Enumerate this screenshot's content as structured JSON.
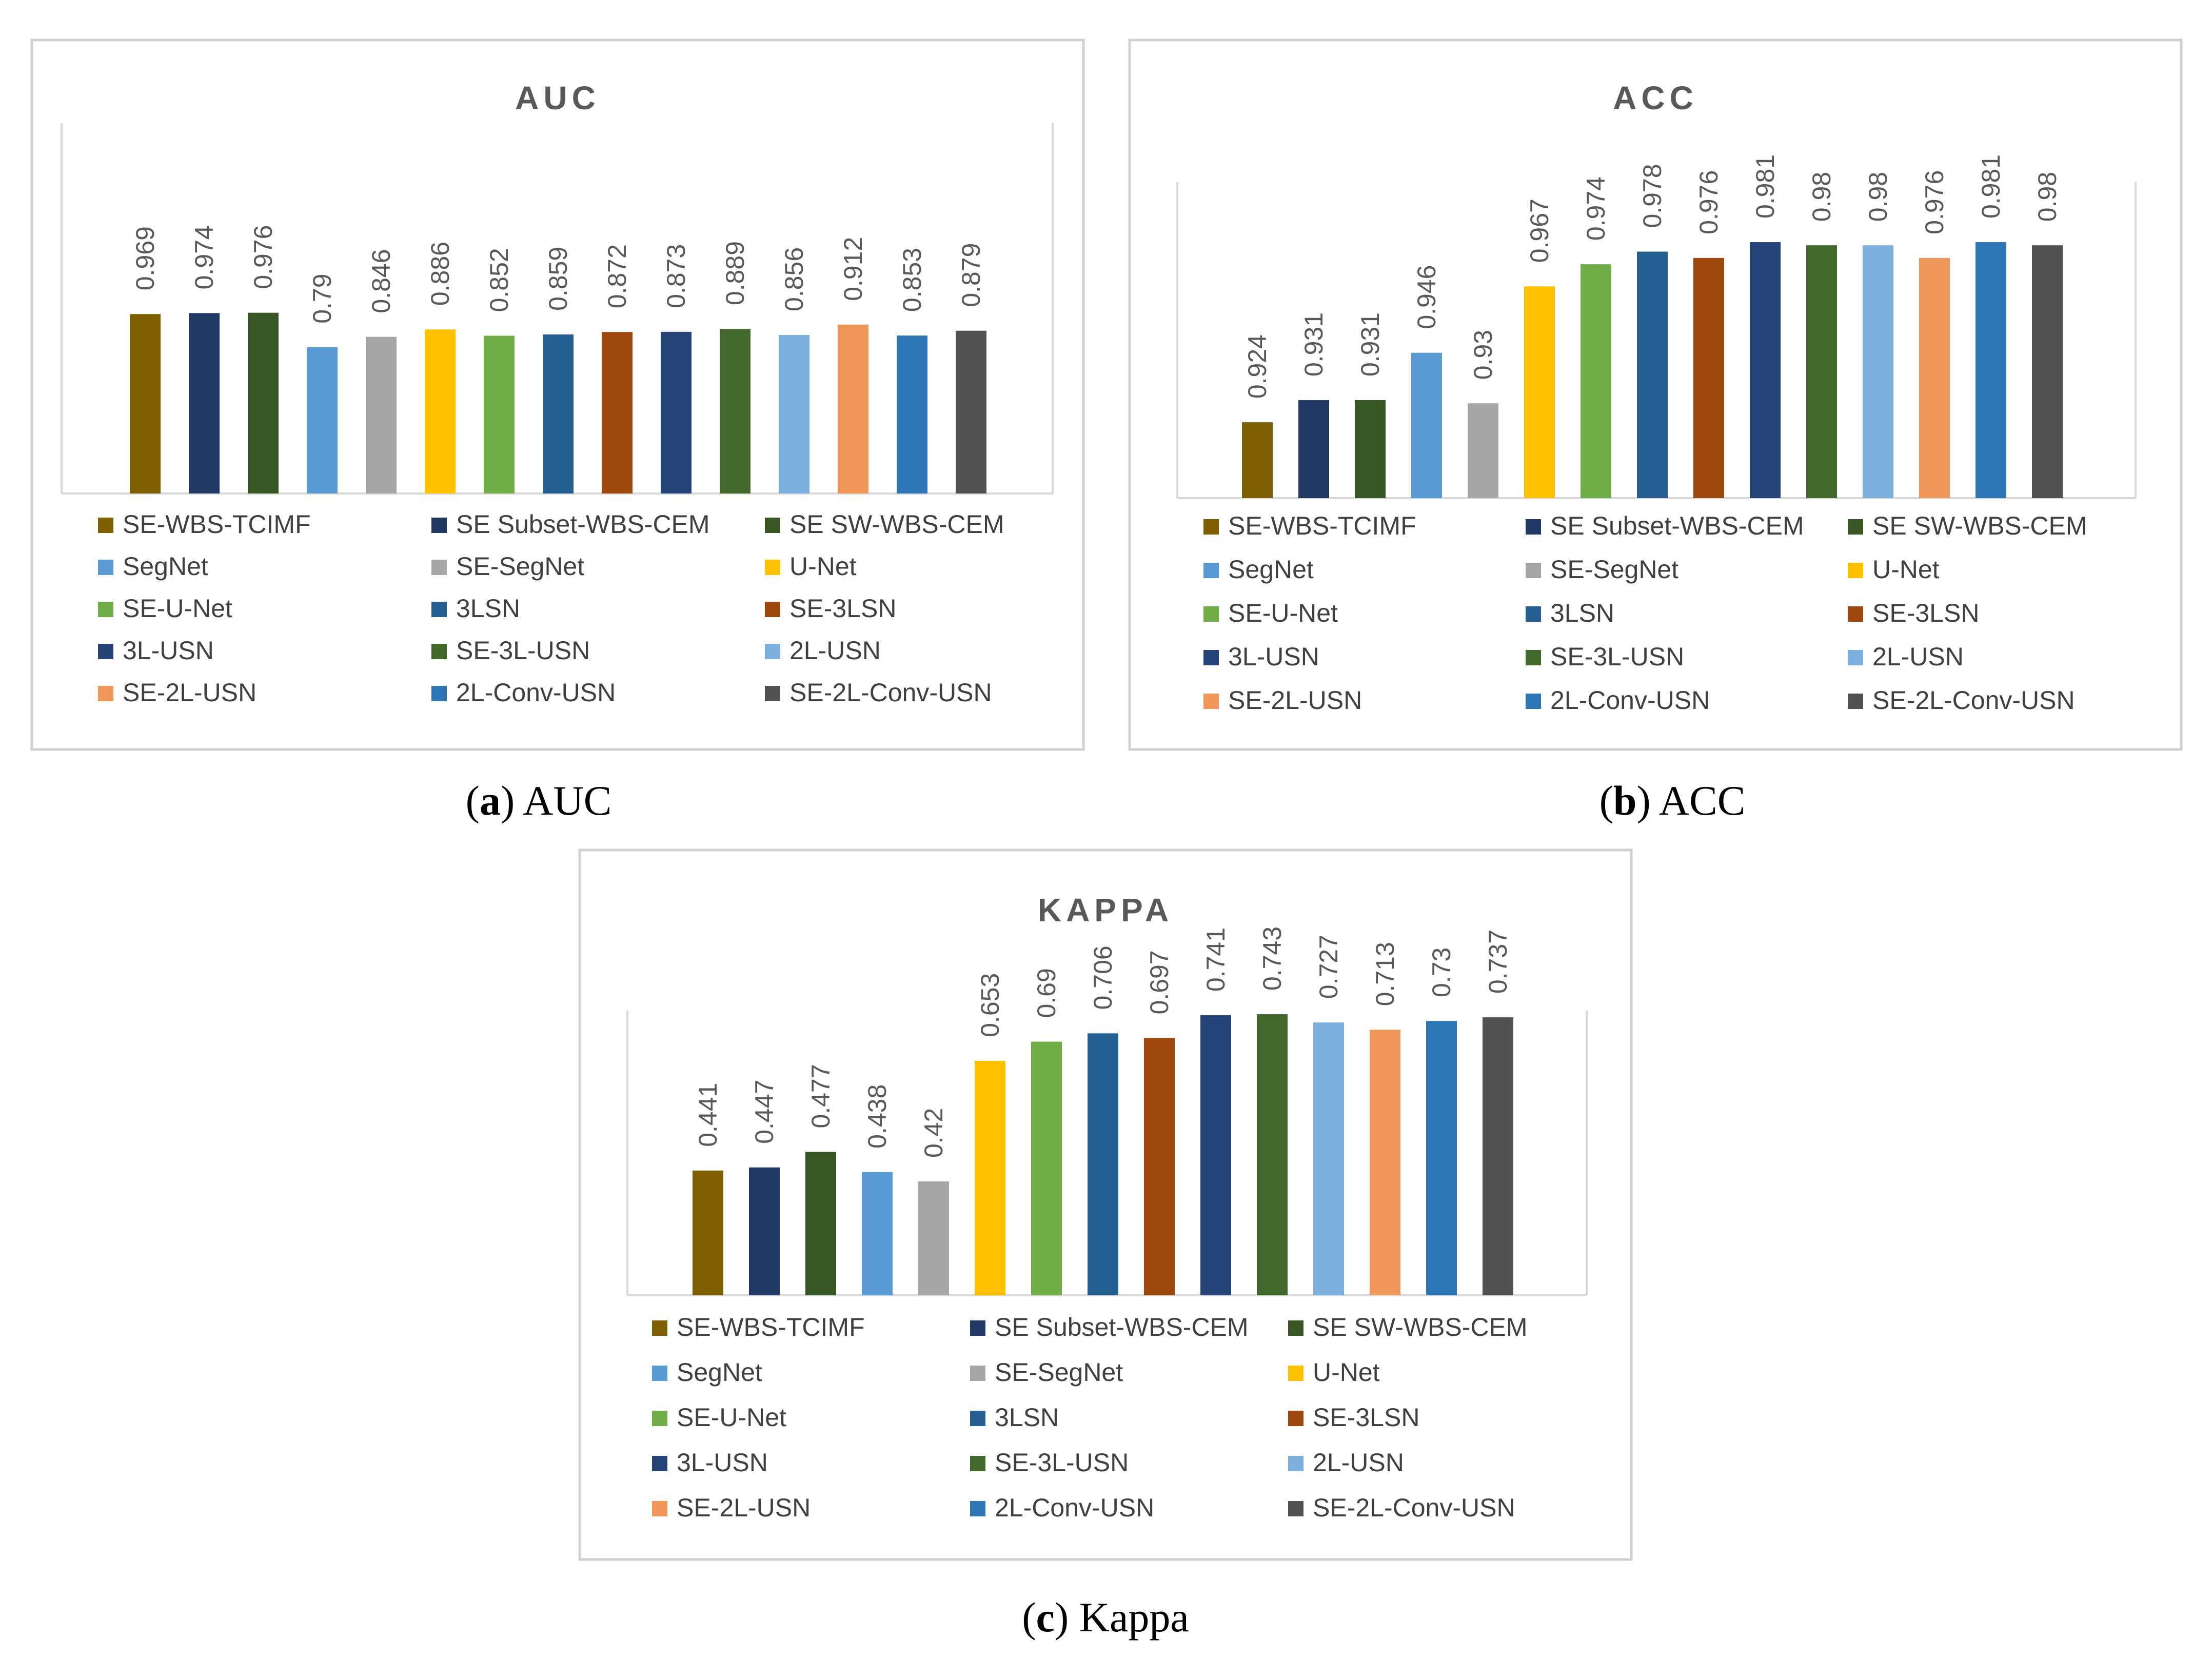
{
  "colors": {
    "SE-WBS-TCIMF": "#7F6000",
    "SE Subset-WBS-CEM": "#203864",
    "SE SW-WBS-CEM": "#375623",
    "SegNet": "#5B9BD5",
    "SE-SegNet": "#A5A5A5",
    "U-Net": "#FFC000",
    "SE-U-Net": "#70AD47",
    "3LSN": "#255E91",
    "SE-3LSN": "#9E480E",
    "3L-USN": "#264478",
    "SE-3L-USN": "#43682B",
    "2L-USN": "#7CAFDD",
    "SE-2L-USN": "#F1975A",
    "2L-Conv-USN": "#2E75B6",
    "SE-2L-Conv-USN": "#515151"
  },
  "chart_data": [
    {
      "id": "auc",
      "type": "bar",
      "title": "AUC",
      "caption_letter": "a",
      "caption_text": " AUC",
      "xlabel": "",
      "ylabel": "",
      "categories": [
        "SE-WBS-TCIMF",
        "SE Subset-WBS-CEM",
        "SE SW-WBS-CEM",
        "SegNet",
        "SE-SegNet",
        "U-Net",
        "SE-U-Net",
        "3LSN",
        "SE-3LSN",
        "3L-USN",
        "SE-3L-USN",
        "2L-USN",
        "SE-2L-USN",
        "2L-Conv-USN",
        "SE-2L-Conv-USN"
      ],
      "values": [
        0.969,
        0.974,
        0.976,
        0.79,
        0.846,
        0.886,
        0.852,
        0.859,
        0.872,
        0.873,
        0.889,
        0.856,
        0.912,
        0.853,
        0.879
      ],
      "labels": [
        "0.969",
        "0.974",
        "0.976",
        "0.79",
        "0.846",
        "0.886",
        "0.852",
        "0.859",
        "0.872",
        "0.873",
        "0.889",
        "0.856",
        "0.912",
        "0.853",
        "0.879"
      ],
      "ylim": [
        0,
        2.0
      ],
      "legend_position": "bottom"
    },
    {
      "id": "acc",
      "type": "bar",
      "title": "ACC",
      "caption_letter": "b",
      "caption_text": " ACC",
      "xlabel": "",
      "ylabel": "",
      "categories": [
        "SE-WBS-TCIMF",
        "SE Subset-WBS-CEM",
        "SE SW-WBS-CEM",
        "SegNet",
        "SE-SegNet",
        "U-Net",
        "SE-U-Net",
        "3LSN",
        "SE-3LSN",
        "3L-USN",
        "SE-3L-USN",
        "2L-USN",
        "SE-2L-USN",
        "2L-Conv-USN",
        "SE-2L-Conv-USN"
      ],
      "values": [
        0.924,
        0.931,
        0.931,
        0.946,
        0.93,
        0.967,
        0.974,
        0.978,
        0.976,
        0.981,
        0.98,
        0.98,
        0.976,
        0.981,
        0.98
      ],
      "labels": [
        "0.924",
        "0.931",
        "0.931",
        "0.946",
        "0.93",
        "0.967",
        "0.974",
        "0.978",
        "0.976",
        "0.981",
        "0.98",
        "0.98",
        "0.976",
        "0.981",
        "0.98"
      ],
      "ylim": [
        0.9,
        1.0
      ],
      "legend_position": "bottom"
    },
    {
      "id": "kappa",
      "type": "bar",
      "title": "KAPPA",
      "caption_letter": "c",
      "caption_text": " Kappa",
      "xlabel": "",
      "ylabel": "",
      "categories": [
        "SE-WBS-TCIMF",
        "SE Subset-WBS-CEM",
        "SE SW-WBS-CEM",
        "SegNet",
        "SE-SegNet",
        "U-Net",
        "SE-U-Net",
        "3LSN",
        "SE-3LSN",
        "3L-USN",
        "SE-3L-USN",
        "2L-USN",
        "SE-2L-USN",
        "2L-Conv-USN",
        "SE-2L-Conv-USN"
      ],
      "values": [
        0.441,
        0.447,
        0.477,
        0.438,
        0.42,
        0.653,
        0.69,
        0.706,
        0.697,
        0.741,
        0.743,
        0.727,
        0.713,
        0.73,
        0.737
      ],
      "labels": [
        "0.441",
        "0.447",
        "0.477",
        "0.438",
        "0.42",
        "0.653",
        "0.69",
        "0.706",
        "0.697",
        "0.741",
        "0.743",
        "0.727",
        "0.713",
        "0.73",
        "0.737"
      ],
      "ylim": [
        0.2,
        0.75
      ],
      "legend_position": "bottom"
    }
  ]
}
